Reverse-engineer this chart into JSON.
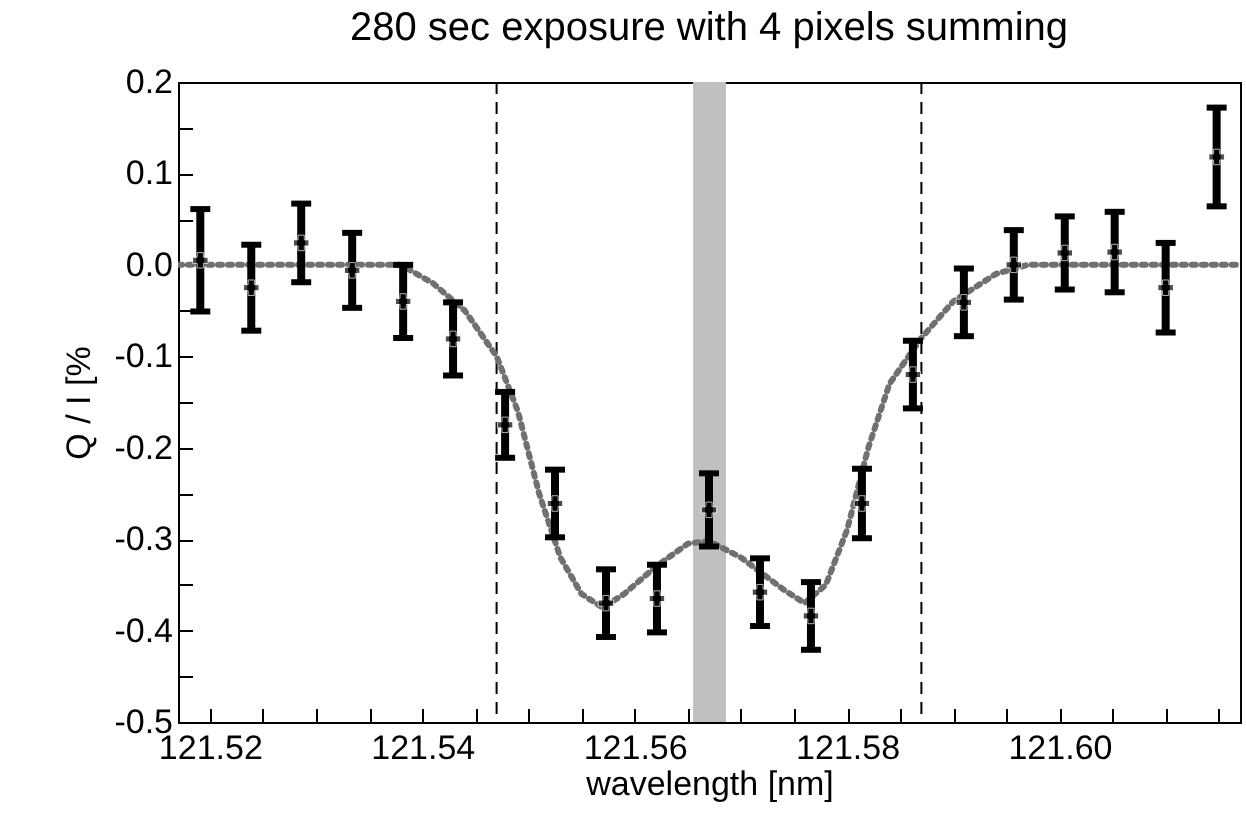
{
  "chart_data": {
    "type": "scatter",
    "title": "280 sec exposure with 4 pixels summing",
    "xlabel": "wavelength [nm]",
    "ylabel": "Q / I [%",
    "xlim": [
      121.517,
      121.617
    ],
    "ylim": [
      -0.5,
      0.2
    ],
    "xticks": [
      121.52,
      {
        "value": 121.525,
        "label": null
      },
      {
        "value": 121.53,
        "label": null
      },
      {
        "value": 121.535,
        "label": null
      },
      121.54,
      {
        "value": 121.545,
        "label": null
      },
      {
        "value": 121.55,
        "label": null
      },
      {
        "value": 121.555,
        "label": null
      },
      121.56,
      {
        "value": 121.565,
        "label": null
      },
      {
        "value": 121.57,
        "label": null
      },
      {
        "value": 121.575,
        "label": null
      },
      121.58,
      {
        "value": 121.585,
        "label": null
      },
      {
        "value": 121.59,
        "label": null
      },
      {
        "value": 121.595,
        "label": null
      },
      {
        "value": 121.6,
        "label": "121.60"
      },
      {
        "value": 121.605,
        "label": null
      },
      {
        "value": 121.61,
        "label": null
      },
      {
        "value": 121.615,
        "label": null
      }
    ],
    "yticks": [
      {
        "value": -0.5,
        "label": "-0.5"
      },
      {
        "value": -0.45,
        "label": null
      },
      {
        "value": -0.4,
        "label": "-0.4"
      },
      {
        "value": -0.35,
        "label": null
      },
      {
        "value": -0.3,
        "label": "-0.3"
      },
      {
        "value": -0.25,
        "label": null
      },
      {
        "value": -0.2,
        "label": "-0.2"
      },
      {
        "value": -0.15,
        "label": null
      },
      {
        "value": -0.1,
        "label": "-0.1"
      },
      {
        "value": -0.05,
        "label": null
      },
      {
        "value": 0,
        "label": "0.0"
      },
      {
        "value": 0.05,
        "label": null
      },
      {
        "value": 0.1,
        "label": "0.1"
      },
      {
        "value": 0.15,
        "label": null
      },
      {
        "value": 0.2,
        "label": "0.2"
      }
    ],
    "grid": false,
    "ref_lines": [
      {
        "axis": "x",
        "value": 121.547,
        "color": "#000000",
        "line_style": "dashed"
      },
      {
        "axis": "x",
        "value": 121.587,
        "color": "#000000",
        "line_style": "dashed"
      }
    ],
    "bands": [
      {
        "axis": "x",
        "from": 121.5655,
        "to": 121.5686,
        "color": "#c0c0c0"
      }
    ],
    "series": [
      {
        "type": "line",
        "color": "#707070",
        "line_style": "dotted",
        "marker": "none",
        "x": [
          121.517,
          121.538,
          121.541,
          121.544,
          121.547,
          121.549,
          121.551,
          121.553,
          121.555,
          121.557,
          121.559,
          121.562,
          121.565,
          121.567,
          121.57,
          121.574,
          121.576,
          121.578,
          121.58,
          121.582,
          121.584,
          121.587,
          121.59,
          121.594,
          121.597,
          121.617
        ],
        "values": [
          0,
          0,
          -0.02,
          -0.05,
          -0.1,
          -0.16,
          -0.25,
          -0.32,
          -0.36,
          -0.375,
          -0.36,
          -0.33,
          -0.305,
          -0.302,
          -0.32,
          -0.355,
          -0.37,
          -0.35,
          -0.29,
          -0.2,
          -0.13,
          -0.08,
          -0.04,
          -0.01,
          0,
          0
        ]
      },
      {
        "color": "#000000",
        "marker": "cross",
        "x": [
          121.5191,
          121.5239,
          121.5286,
          121.5334,
          121.5382,
          121.5429,
          121.5478,
          121.5525,
          121.5573,
          121.5621,
          121.567,
          121.5718,
          121.5766,
          121.5814,
          121.5862,
          121.591,
          121.5957,
          121.6005,
          121.6052,
          121.61,
          121.6148
        ],
        "values": [
          0.005,
          -0.025,
          0.024,
          -0.006,
          -0.04,
          -0.081,
          -0.175,
          -0.261,
          -0.37,
          -0.365,
          -0.268,
          -0.358,
          -0.384,
          -0.261,
          -0.12,
          -0.041,
          0,
          0.013,
          0.014,
          -0.025,
          0.118
        ],
        "errors": [
          0.056,
          0.047,
          0.043,
          0.041,
          0.04,
          0.04,
          0.036,
          0.037,
          0.037,
          0.037,
          0.04,
          0.037,
          0.037,
          0.038,
          0.037,
          0.037,
          0.038,
          0.04,
          0.044,
          0.049,
          0.054
        ]
      }
    ]
  }
}
